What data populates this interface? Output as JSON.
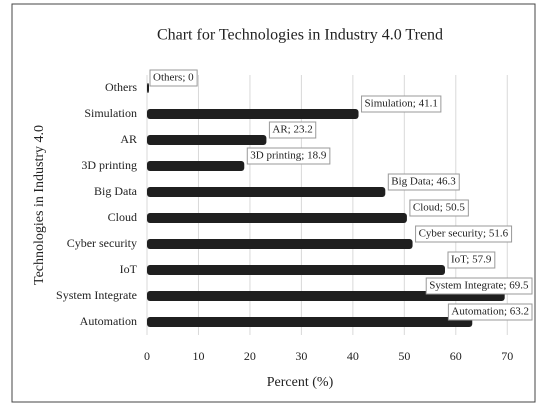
{
  "chart_data": {
    "type": "bar",
    "orientation": "horizontal",
    "title": "Chart for Technologies in Industry 4.0 Trend",
    "xlabel": "Percent (%)",
    "ylabel": "Technologies in Industry 4.0",
    "categories": [
      "Others",
      "Simulation",
      "AR",
      "3D printing",
      "Big Data",
      "Cloud",
      "Cyber security",
      "IoT",
      "System Integrate",
      "Automation"
    ],
    "values": [
      0,
      41.1,
      23.2,
      18.9,
      46.3,
      50.5,
      51.6,
      57.9,
      69.5,
      63.2
    ],
    "value_labels": [
      "Others; 0",
      "Simulation; 41.1",
      "AR; 23.2",
      "3D printing; 18.9",
      "Big Data; 46.3",
      "Cloud; 50.5",
      "Cyber security; 51.6",
      "IoT; 57.9",
      "System Integrate; 69.5",
      "Automation; 63.2"
    ],
    "color": "#1f1f1f",
    "xlim": [
      0,
      75
    ],
    "xticks": [
      0,
      10,
      20,
      30,
      40,
      50,
      60,
      70
    ],
    "grid": true
  }
}
